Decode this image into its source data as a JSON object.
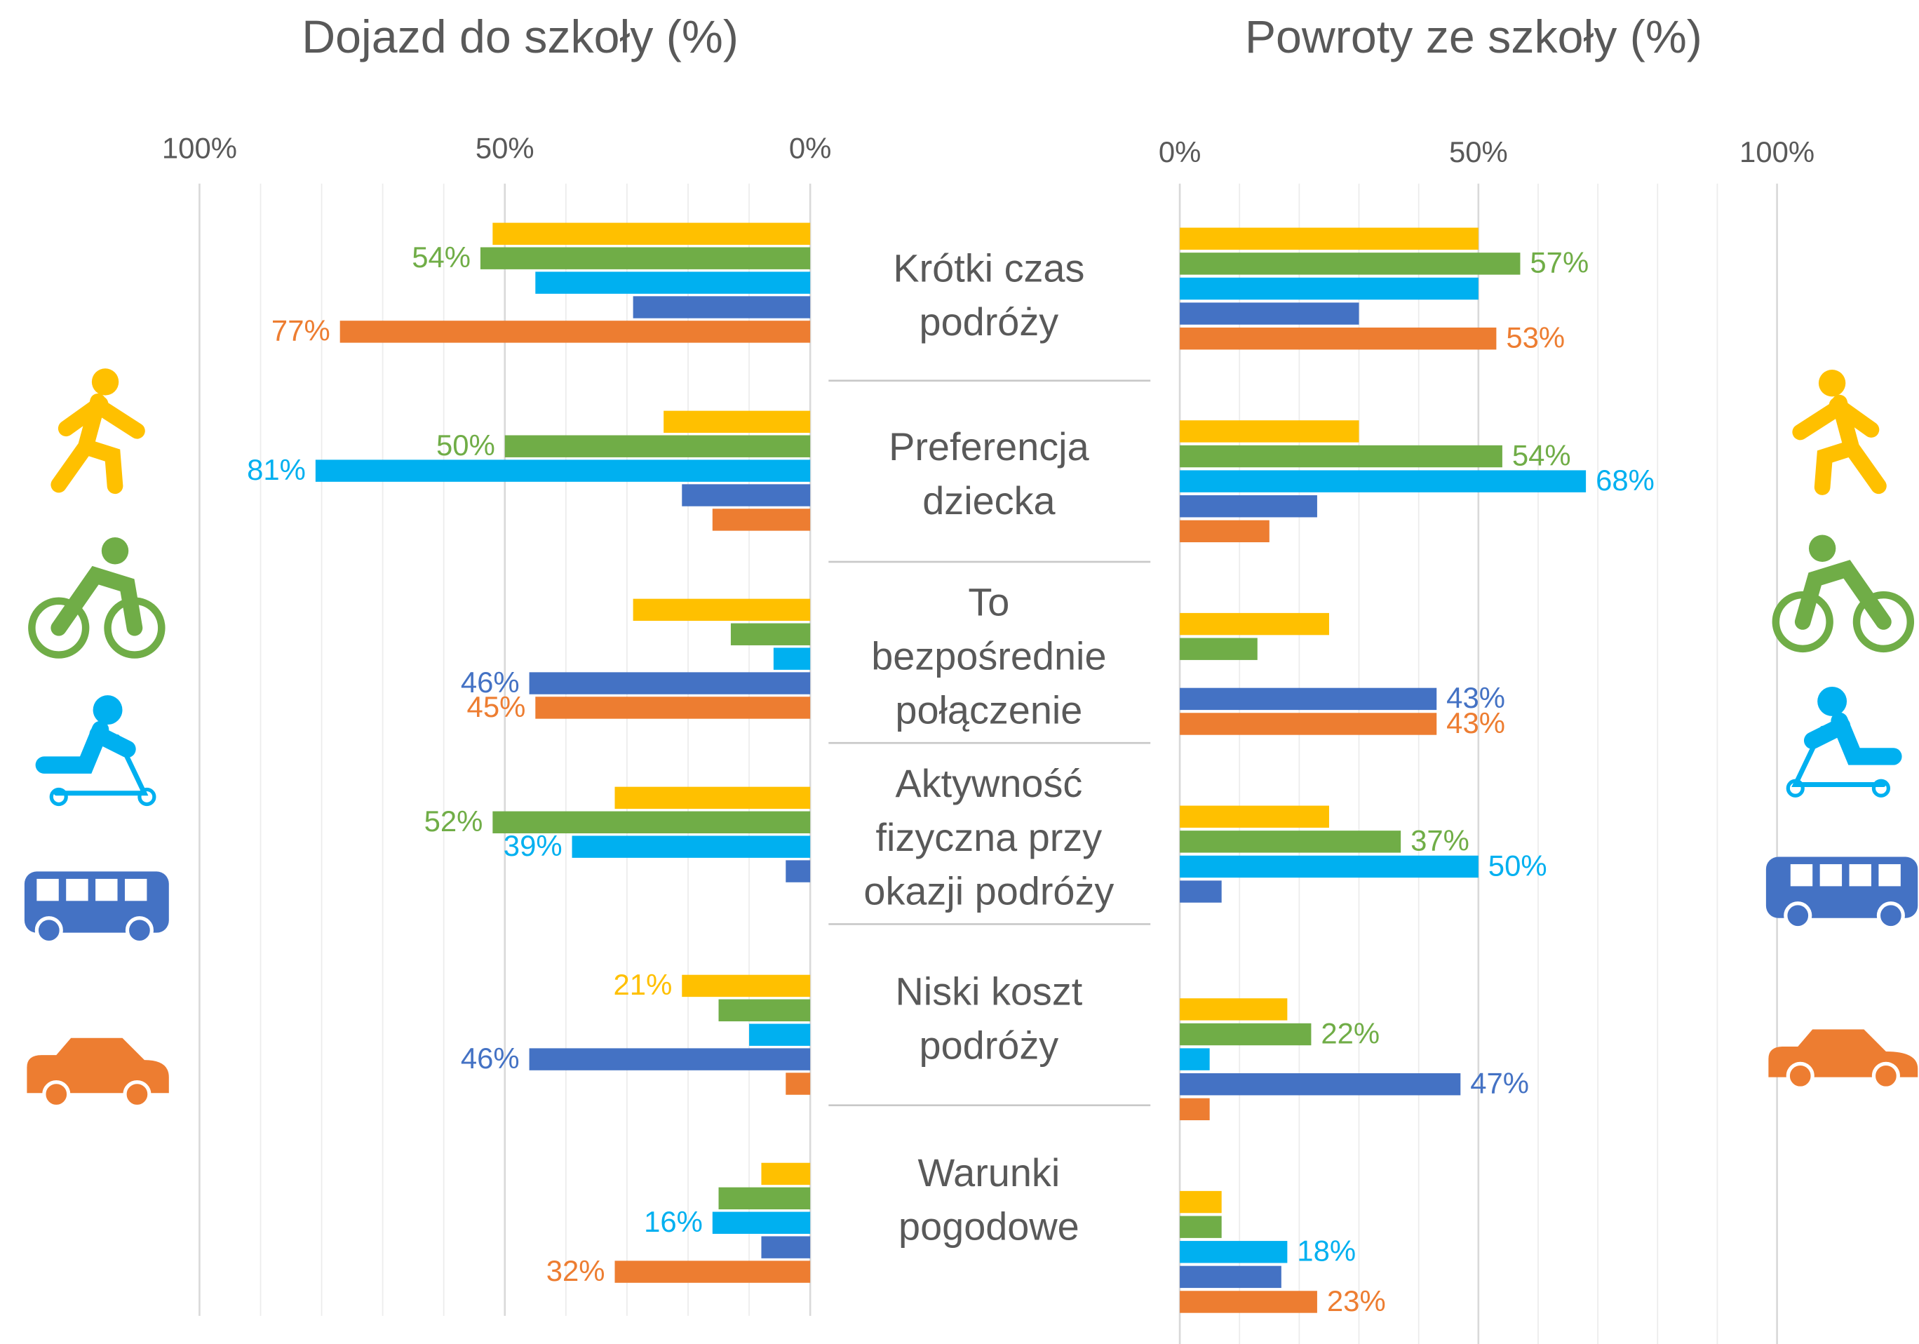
{
  "chart_data": [
    {
      "type": "hbar",
      "title": "Dojazd do szkoły (%)",
      "reversed": true,
      "categories": [
        "Krótki czas podróży",
        "Preferencja dziecka",
        "To bezpośrednie połączenie",
        "Aktywność fizyczna przy okazji podróży",
        "Niski koszt podróży",
        "Warunki pogodowe"
      ],
      "xlim": [
        0,
        100
      ],
      "xticks": [
        {
          "value": 0,
          "label": "0%"
        },
        {
          "value": 50,
          "label": "50%"
        },
        {
          "value": 100,
          "label": "100%"
        }
      ],
      "xminor": [
        10,
        20,
        30,
        40,
        60,
        70,
        80,
        90
      ],
      "grid": true,
      "series": [
        {
          "color": "#FFC000",
          "values": [
            52,
            24,
            29,
            32,
            21,
            8
          ],
          "value_labels": [
            null,
            null,
            null,
            null,
            "21%",
            null
          ]
        },
        {
          "color": "#70AD47",
          "values": [
            54,
            50,
            13,
            52,
            15,
            15
          ],
          "value_labels": [
            "54%",
            "50%",
            null,
            "52%",
            null,
            null
          ]
        },
        {
          "color": "#00B0F0",
          "values": [
            45,
            81,
            6,
            39,
            10,
            16
          ],
          "value_labels": [
            null,
            "81%",
            null,
            "39%",
            null,
            "16%"
          ]
        },
        {
          "color": "#4472C4",
          "values": [
            29,
            21,
            46,
            4,
            46,
            8
          ],
          "value_labels": [
            null,
            null,
            "46%",
            null,
            "46%",
            null
          ]
        },
        {
          "color": "#ED7D31",
          "values": [
            77,
            16,
            45,
            0,
            4,
            32
          ],
          "value_labels": [
            "77%",
            null,
            "45%",
            null,
            null,
            "32%"
          ]
        }
      ]
    },
    {
      "type": "hbar",
      "title": "Powroty ze szkoły (%)",
      "reversed": false,
      "xlim": [
        0,
        100
      ],
      "xticks": [
        {
          "value": 0,
          "label": "0%"
        },
        {
          "value": 50,
          "label": "50%"
        },
        {
          "value": 100,
          "label": "100%"
        }
      ],
      "xminor": [
        10,
        20,
        30,
        40,
        60,
        70,
        80,
        90
      ],
      "grid": true,
      "series": [
        {
          "color": "#FFC000",
          "values": [
            50,
            30,
            25,
            25,
            18,
            7
          ],
          "value_labels": [
            null,
            null,
            null,
            null,
            null,
            null
          ]
        },
        {
          "color": "#70AD47",
          "values": [
            57,
            54,
            13,
            37,
            22,
            7
          ],
          "value_labels": [
            "57%",
            "54%",
            null,
            "37%",
            "22%",
            null
          ]
        },
        {
          "color": "#00B0F0",
          "values": [
            50,
            68,
            0,
            50,
            5,
            18
          ],
          "value_labels": [
            null,
            "68%",
            null,
            "50%",
            null,
            "18%"
          ]
        },
        {
          "color": "#4472C4",
          "values": [
            30,
            23,
            43,
            7,
            47,
            17
          ],
          "value_labels": [
            null,
            null,
            "43%",
            null,
            "47%",
            null
          ]
        },
        {
          "color": "#ED7D31",
          "values": [
            53,
            15,
            43,
            0,
            5,
            23
          ],
          "value_labels": [
            "53%",
            null,
            "43%",
            null,
            null,
            "23%"
          ]
        }
      ]
    }
  ]
}
